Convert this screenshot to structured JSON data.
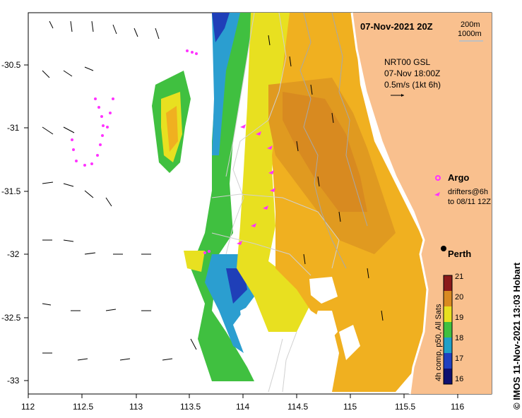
{
  "map": {
    "date_title": "07-Nov-2021 20Z",
    "isobath_1": "200m",
    "isobath_2": "1000m",
    "current_source": "NRT00 GSL",
    "current_time": "07-Nov 18:00Z",
    "current_scale": "0.5m/s (1kt 6h)",
    "legend_argo": "Argo",
    "legend_drifters_1": "drifters@6h",
    "legend_drifters_2": "to 08/11 12Z",
    "city": "Perth",
    "colorbar_label": "4h comp, p50, All Sats",
    "colorbar_ticks": [
      "16",
      "17",
      "18",
      "19",
      "20",
      "21"
    ],
    "credit": "© IMOS 11-Nov-2021 13:03 Hobart",
    "lon_ticks": [
      "112",
      "112.5",
      "113",
      "113.5",
      "114",
      "114.5",
      "115",
      "115.5",
      "116"
    ],
    "lat_ticks": [
      "-30.5",
      "-31",
      "-31.5",
      "-32",
      "-32.5",
      "-33"
    ],
    "colors": {
      "land": "#f9c08e",
      "warm": "#e8a020",
      "orange": "#f0b020",
      "yellow": "#f2e010",
      "green": "#40c040",
      "cyan": "#20b0c0",
      "blue": "#2040c0",
      "argo": "#ff44ff"
    }
  }
}
